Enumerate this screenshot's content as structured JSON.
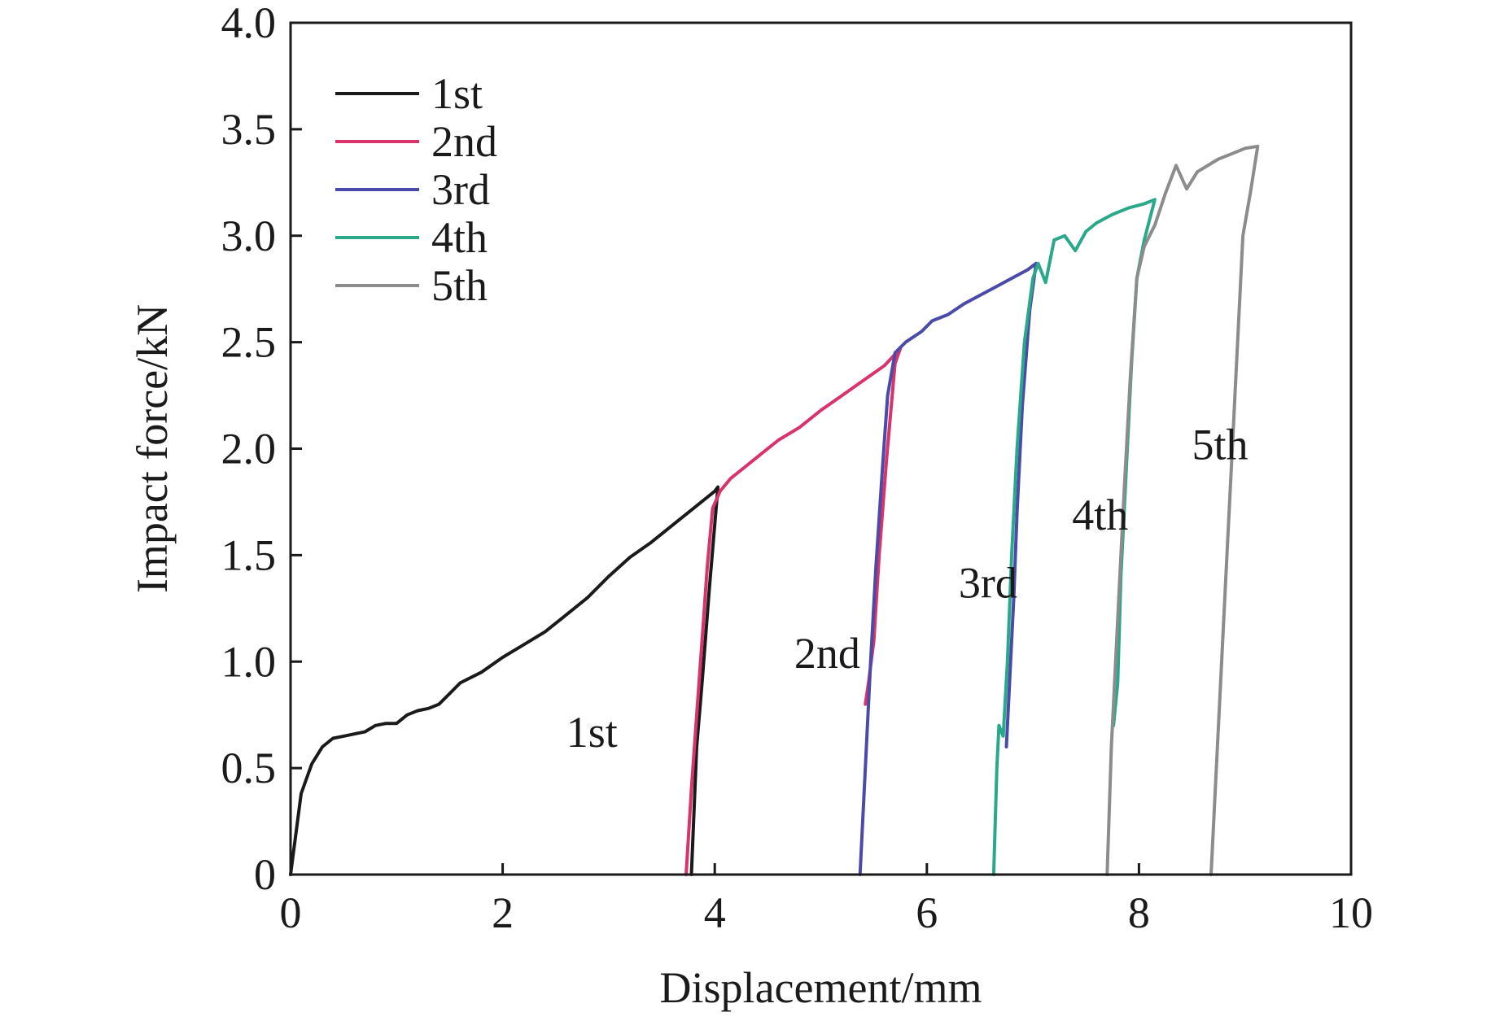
{
  "chart_data": {
    "type": "line",
    "xlabel": "Displacement/mm",
    "ylabel": "Impact force/kN",
    "xlim": [
      0,
      10
    ],
    "ylim": [
      0,
      4.0
    ],
    "xticks": [
      0,
      2,
      4,
      6,
      8,
      10
    ],
    "xtick_labels": [
      "0",
      "2",
      "4",
      "6",
      "8",
      "10"
    ],
    "yticks": [
      0,
      0.5,
      1.0,
      1.5,
      2.0,
      2.5,
      3.0,
      3.5,
      4.0
    ],
    "ytick_labels": [
      "0",
      "0.5",
      "1.0",
      "1.5",
      "2.0",
      "2.5",
      "3.0",
      "3.5",
      "4.0"
    ],
    "grid": false,
    "legend_position": "top-left",
    "series": [
      {
        "name": "1st",
        "color": "#1a1a1a",
        "points": [
          [
            0.0,
            0.0
          ],
          [
            0.1,
            0.38
          ],
          [
            0.2,
            0.52
          ],
          [
            0.3,
            0.6
          ],
          [
            0.4,
            0.64
          ],
          [
            0.5,
            0.65
          ],
          [
            0.6,
            0.66
          ],
          [
            0.7,
            0.67
          ],
          [
            0.8,
            0.7
          ],
          [
            0.9,
            0.71
          ],
          [
            1.0,
            0.71
          ],
          [
            1.1,
            0.75
          ],
          [
            1.2,
            0.77
          ],
          [
            1.3,
            0.78
          ],
          [
            1.4,
            0.8
          ],
          [
            1.5,
            0.85
          ],
          [
            1.6,
            0.9
          ],
          [
            1.8,
            0.95
          ],
          [
            2.0,
            1.02
          ],
          [
            2.2,
            1.08
          ],
          [
            2.4,
            1.14
          ],
          [
            2.6,
            1.22
          ],
          [
            2.8,
            1.3
          ],
          [
            3.0,
            1.4
          ],
          [
            3.2,
            1.49
          ],
          [
            3.4,
            1.56
          ],
          [
            3.6,
            1.64
          ],
          [
            3.8,
            1.72
          ],
          [
            4.0,
            1.8
          ],
          [
            4.03,
            1.82
          ],
          [
            3.95,
            1.35
          ],
          [
            3.88,
            0.9
          ],
          [
            3.83,
            0.6
          ],
          [
            3.78,
            0.0
          ]
        ]
      },
      {
        "name": "2nd",
        "color": "#d8336a",
        "points": [
          [
            3.73,
            0.0
          ],
          [
            3.78,
            0.4
          ],
          [
            3.83,
            0.75
          ],
          [
            3.88,
            1.1
          ],
          [
            3.93,
            1.45
          ],
          [
            3.98,
            1.72
          ],
          [
            4.05,
            1.8
          ],
          [
            4.15,
            1.86
          ],
          [
            4.3,
            1.92
          ],
          [
            4.45,
            1.98
          ],
          [
            4.6,
            2.04
          ],
          [
            4.8,
            2.1
          ],
          [
            5.0,
            2.18
          ],
          [
            5.2,
            2.25
          ],
          [
            5.4,
            2.32
          ],
          [
            5.6,
            2.39
          ],
          [
            5.75,
            2.47
          ],
          [
            5.7,
            2.4
          ],
          [
            5.62,
            1.95
          ],
          [
            5.55,
            1.5
          ],
          [
            5.5,
            1.1
          ],
          [
            5.45,
            0.9
          ],
          [
            5.42,
            0.8
          ]
        ]
      },
      {
        "name": "3rd",
        "color": "#4a4aa8",
        "points": [
          [
            5.37,
            0.0
          ],
          [
            5.42,
            0.5
          ],
          [
            5.47,
            1.0
          ],
          [
            5.52,
            1.45
          ],
          [
            5.58,
            1.9
          ],
          [
            5.63,
            2.25
          ],
          [
            5.7,
            2.45
          ],
          [
            5.8,
            2.5
          ],
          [
            5.95,
            2.55
          ],
          [
            6.05,
            2.6
          ],
          [
            6.2,
            2.63
          ],
          [
            6.35,
            2.68
          ],
          [
            6.5,
            2.72
          ],
          [
            6.65,
            2.76
          ],
          [
            6.8,
            2.8
          ],
          [
            6.95,
            2.84
          ],
          [
            7.03,
            2.87
          ],
          [
            6.97,
            2.65
          ],
          [
            6.9,
            2.2
          ],
          [
            6.85,
            1.7
          ],
          [
            6.82,
            1.3
          ],
          [
            6.78,
            0.9
          ],
          [
            6.75,
            0.6
          ]
        ]
      },
      {
        "name": "4th",
        "color": "#2aa88a",
        "points": [
          [
            6.63,
            0.0
          ],
          [
            6.66,
            0.5
          ],
          [
            6.68,
            0.7
          ],
          [
            6.72,
            0.65
          ],
          [
            6.76,
            1.0
          ],
          [
            6.8,
            1.5
          ],
          [
            6.85,
            2.0
          ],
          [
            6.92,
            2.5
          ],
          [
            7.0,
            2.8
          ],
          [
            7.05,
            2.87
          ],
          [
            7.12,
            2.78
          ],
          [
            7.2,
            2.98
          ],
          [
            7.3,
            3.0
          ],
          [
            7.4,
            2.93
          ],
          [
            7.5,
            3.02
          ],
          [
            7.6,
            3.06
          ],
          [
            7.75,
            3.1
          ],
          [
            7.9,
            3.13
          ],
          [
            8.05,
            3.15
          ],
          [
            8.15,
            3.17
          ],
          [
            8.05,
            2.98
          ],
          [
            7.98,
            2.8
          ],
          [
            7.93,
            2.4
          ],
          [
            7.88,
            1.9
          ],
          [
            7.83,
            1.4
          ],
          [
            7.8,
            0.9
          ],
          [
            7.76,
            0.7
          ]
        ]
      },
      {
        "name": "5th",
        "color": "#8c8c8c",
        "points": [
          [
            7.7,
            0.0
          ],
          [
            7.74,
            0.6
          ],
          [
            7.8,
            1.2
          ],
          [
            7.86,
            1.8
          ],
          [
            7.92,
            2.35
          ],
          [
            7.98,
            2.8
          ],
          [
            8.05,
            2.95
          ],
          [
            8.15,
            3.05
          ],
          [
            8.25,
            3.2
          ],
          [
            8.35,
            3.33
          ],
          [
            8.45,
            3.22
          ],
          [
            8.55,
            3.3
          ],
          [
            8.65,
            3.33
          ],
          [
            8.75,
            3.36
          ],
          [
            8.85,
            3.38
          ],
          [
            9.0,
            3.41
          ],
          [
            9.12,
            3.42
          ],
          [
            9.05,
            3.2
          ],
          [
            8.98,
            3.0
          ],
          [
            8.93,
            2.5
          ],
          [
            8.88,
            2.0
          ],
          [
            8.83,
            1.5
          ],
          [
            8.78,
            1.0
          ],
          [
            8.73,
            0.5
          ],
          [
            8.68,
            0.0
          ]
        ]
      }
    ],
    "annotations": [
      {
        "text": "1st",
        "x": 2.6,
        "y": 0.6
      },
      {
        "text": "2nd",
        "x": 4.75,
        "y": 0.97
      },
      {
        "text": "3rd",
        "x": 6.3,
        "y": 1.3
      },
      {
        "text": "4th",
        "x": 7.37,
        "y": 1.62
      },
      {
        "text": "5th",
        "x": 8.5,
        "y": 1.95
      }
    ]
  }
}
